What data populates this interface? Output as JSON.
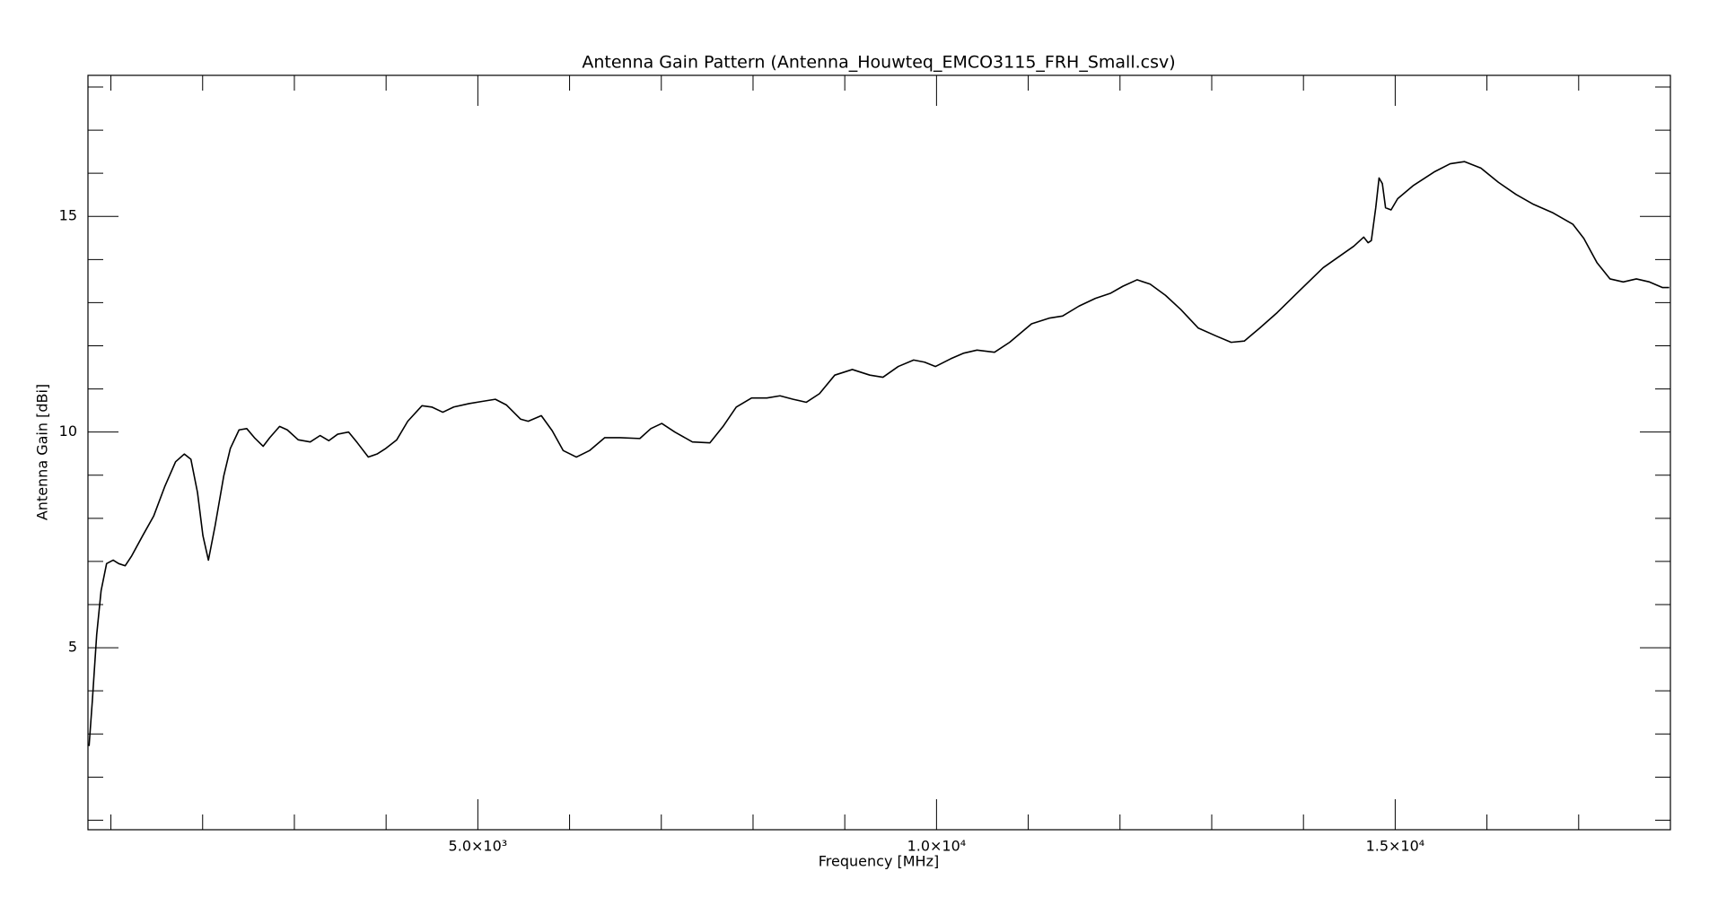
{
  "chart_data": {
    "type": "line",
    "title": "Antenna Gain Pattern (Antenna_Houwteq_EMCO3115_FRH_Small.csv)",
    "x_label": "Frequency [MHz]",
    "y_label": "Antenna Gain [dBi]",
    "x": [
      762,
      798,
      845,
      893,
      953,
      1025,
      1085,
      1156,
      1227,
      1347,
      1466,
      1586,
      1705,
      1800,
      1872,
      1944,
      2003,
      2063,
      2137,
      2230,
      2302,
      2397,
      2481,
      2564,
      2660,
      2732,
      2839,
      2923,
      3042,
      3173,
      3281,
      3376,
      3472,
      3591,
      3687,
      3806,
      3901,
      3997,
      4116,
      4236,
      4391,
      4498,
      4618,
      4737,
      4904,
      5047,
      5191,
      5310,
      5465,
      5549,
      5692,
      5811,
      5931,
      6074,
      6217,
      6384,
      6551,
      6766,
      6886,
      7005,
      7148,
      7339,
      7530,
      7673,
      7817,
      7984,
      8151,
      8294,
      8437,
      8581,
      8724,
      8891,
      9082,
      9273,
      9416,
      9583,
      9751,
      9870,
      9989,
      10156,
      10298,
      10441,
      10632,
      10797,
      11036,
      11227,
      11374,
      11553,
      11732,
      11899,
      12031,
      12186,
      12329,
      12496,
      12663,
      12854,
      13045,
      13212,
      13355,
      13523,
      13714,
      13953,
      14215,
      14382,
      14549,
      14657,
      14705,
      14740,
      14788,
      14824,
      14860,
      14895,
      14955,
      15027,
      15194,
      15433,
      15599,
      15754,
      15934,
      16125,
      16316,
      16507,
      16722,
      16936,
      17056,
      17199,
      17342,
      17486,
      17629,
      17772,
      17915,
      17987
    ],
    "series": [
      {
        "name": "Antenna Gain",
        "color": "#000000",
        "values": [
          2.72,
          3.78,
          5.3,
          6.32,
          6.95,
          7.03,
          6.95,
          6.9,
          7.13,
          7.6,
          8.05,
          8.73,
          9.31,
          9.49,
          9.37,
          8.6,
          7.6,
          7.03,
          7.84,
          8.98,
          9.62,
          10.05,
          10.08,
          9.87,
          9.67,
          9.87,
          10.13,
          10.05,
          9.82,
          9.77,
          9.92,
          9.8,
          9.95,
          10.0,
          9.75,
          9.42,
          9.49,
          9.62,
          9.82,
          10.25,
          10.61,
          10.58,
          10.46,
          10.58,
          10.66,
          10.71,
          10.76,
          10.63,
          10.3,
          10.25,
          10.38,
          10.03,
          9.57,
          9.42,
          9.57,
          9.87,
          9.87,
          9.85,
          10.08,
          10.2,
          10.0,
          9.77,
          9.75,
          10.13,
          10.58,
          10.79,
          10.79,
          10.84,
          10.76,
          10.69,
          10.89,
          11.32,
          11.45,
          11.32,
          11.27,
          11.52,
          11.67,
          11.62,
          11.52,
          11.7,
          11.83,
          11.9,
          11.85,
          12.08,
          12.51,
          12.64,
          12.69,
          12.92,
          13.1,
          13.22,
          13.38,
          13.53,
          13.43,
          13.17,
          12.84,
          12.41,
          12.23,
          12.08,
          12.11,
          12.41,
          12.77,
          13.27,
          13.81,
          14.06,
          14.31,
          14.52,
          14.39,
          14.44,
          15.2,
          15.89,
          15.76,
          15.2,
          15.15,
          15.41,
          15.71,
          16.04,
          16.22,
          16.27,
          16.12,
          15.79,
          15.51,
          15.28,
          15.08,
          14.82,
          14.49,
          13.93,
          13.55,
          13.48,
          13.55,
          13.48,
          13.35,
          13.35
        ]
      }
    ],
    "xlim": [
      750,
      18000
    ],
    "ylim": [
      0.78,
      18.27
    ],
    "xticks": [
      {
        "value": 5000,
        "label": "5.0×10³"
      },
      {
        "value": 10000,
        "label": "1.0×10⁴"
      },
      {
        "value": 15000,
        "label": "1.5×10⁴"
      }
    ],
    "xminorticks": [
      1000,
      2000,
      3000,
      4000,
      6000,
      7000,
      8000,
      9000,
      11000,
      12000,
      13000,
      14000,
      16000,
      17000
    ],
    "yticks": [
      5,
      10,
      15
    ],
    "yminorticks": [
      1,
      2,
      3,
      4,
      6,
      7,
      8,
      9,
      11,
      12,
      13,
      14,
      16,
      17,
      18
    ]
  }
}
